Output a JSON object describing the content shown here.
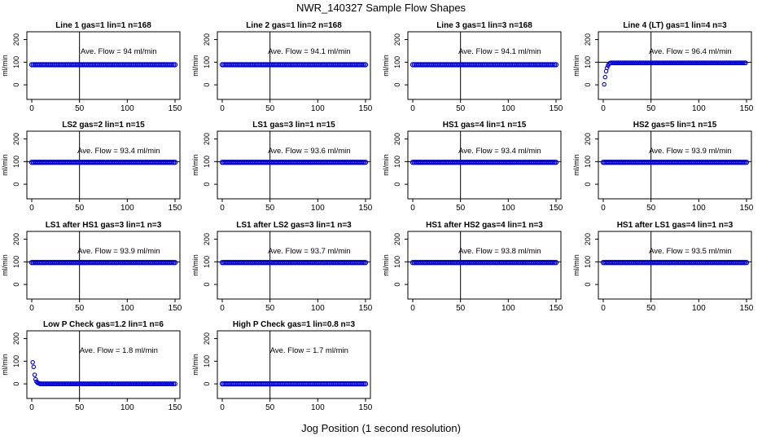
{
  "figure": {
    "title": "NWR_140327  Sample Flow Shapes",
    "xlabel": "Jog Position (1 second resolution)",
    "ylabel": "ml/min",
    "xticks": [
      "0",
      "50",
      "100",
      "150"
    ],
    "yticks": [
      "0",
      "100",
      "200"
    ],
    "point_color": "#0000dd"
  },
  "chart_data": [
    {
      "type": "scatter",
      "title": "Line 1 gas=1 lin=1 n=168",
      "annotation": "Ave. Flow = 94  ml/min",
      "xlim": [
        0,
        150
      ],
      "ylim": [
        -50,
        220
      ],
      "vline": 50,
      "hline": null,
      "shape": "flat",
      "level": 89,
      "x": [
        0,
        150
      ],
      "y": [
        89,
        89
      ]
    },
    {
      "type": "scatter",
      "title": "Line 2 gas=1 lin=2 n=168",
      "annotation": "Ave. Flow = 94.1  ml/min",
      "xlim": [
        0,
        150
      ],
      "ylim": [
        -50,
        220
      ],
      "vline": 50,
      "hline": null,
      "shape": "flat",
      "level": 89,
      "x": [
        0,
        150
      ],
      "y": [
        89,
        89
      ]
    },
    {
      "type": "scatter",
      "title": "Line 3 gas=1 lin=3 n=168",
      "annotation": "Ave. Flow = 94.1  ml/min",
      "xlim": [
        0,
        150
      ],
      "ylim": [
        -50,
        220
      ],
      "vline": 50,
      "hline": null,
      "shape": "flat",
      "level": 89,
      "x": [
        0,
        150
      ],
      "y": [
        89,
        89
      ]
    },
    {
      "type": "scatter",
      "title": "Line 4 (LT) gas=1 lin=4 n=3",
      "annotation": "Ave. Flow = 96.4  ml/min",
      "xlim": [
        0,
        150
      ],
      "ylim": [
        -50,
        220
      ],
      "vline": 50,
      "hline": 100,
      "shape": "rise",
      "level": 97,
      "x": [
        1,
        2,
        3,
        4,
        5,
        6,
        7,
        150
      ],
      "y": [
        2,
        34,
        60,
        75,
        85,
        92,
        96,
        97
      ]
    },
    {
      "type": "scatter",
      "title": "LS2 gas=2 lin=1 n=15",
      "annotation": "Ave. Flow = 93.4  ml/min",
      "xlim": [
        0,
        150
      ],
      "ylim": [
        -50,
        220
      ],
      "vline": 50,
      "hline": 100,
      "shape": "flat",
      "level": 97,
      "x": [
        0,
        150
      ],
      "y": [
        97,
        97
      ]
    },
    {
      "type": "scatter",
      "title": "LS1 gas=3 lin=1 n=15",
      "annotation": "Ave. Flow = 93.6  ml/min",
      "xlim": [
        0,
        150
      ],
      "ylim": [
        -50,
        220
      ],
      "vline": 50,
      "hline": 100,
      "shape": "flat",
      "level": 97,
      "x": [
        0,
        150
      ],
      "y": [
        97,
        97
      ]
    },
    {
      "type": "scatter",
      "title": "HS1 gas=4 lin=1 n=15",
      "annotation": "Ave. Flow = 93.4  ml/min",
      "xlim": [
        0,
        150
      ],
      "ylim": [
        -50,
        220
      ],
      "vline": 50,
      "hline": 100,
      "shape": "flat",
      "level": 97,
      "x": [
        0,
        150
      ],
      "y": [
        97,
        97
      ]
    },
    {
      "type": "scatter",
      "title": "HS2 gas=5 lin=1 n=15",
      "annotation": "Ave. Flow = 93.9  ml/min",
      "xlim": [
        0,
        150
      ],
      "ylim": [
        -50,
        220
      ],
      "vline": 50,
      "hline": 100,
      "shape": "flat",
      "level": 97,
      "x": [
        0,
        150
      ],
      "y": [
        97,
        97
      ]
    },
    {
      "type": "scatter",
      "title": "LS1 after HS1 gas=3 lin=1 n=3",
      "annotation": "Ave. Flow = 93.9  ml/min",
      "xlim": [
        0,
        150
      ],
      "ylim": [
        -50,
        220
      ],
      "vline": 50,
      "hline": 100,
      "shape": "flat",
      "level": 97,
      "x": [
        0,
        150
      ],
      "y": [
        97,
        97
      ]
    },
    {
      "type": "scatter",
      "title": "LS1 after LS2 gas=3 lin=1 n=3",
      "annotation": "Ave. Flow = 93.7  ml/min",
      "xlim": [
        0,
        150
      ],
      "ylim": [
        -50,
        220
      ],
      "vline": 50,
      "hline": 100,
      "shape": "flat",
      "level": 97,
      "x": [
        0,
        150
      ],
      "y": [
        97,
        97
      ]
    },
    {
      "type": "scatter",
      "title": "HS1 after HS2 gas=4 lin=1 n=3",
      "annotation": "Ave. Flow = 93.8  ml/min",
      "xlim": [
        0,
        150
      ],
      "ylim": [
        -50,
        220
      ],
      "vline": 50,
      "hline": 100,
      "shape": "flat",
      "level": 97,
      "x": [
        0,
        150
      ],
      "y": [
        97,
        97
      ]
    },
    {
      "type": "scatter",
      "title": "HS1 after LS1 gas=4 lin=1 n=3",
      "annotation": "Ave. Flow = 93.5  ml/min",
      "xlim": [
        0,
        150
      ],
      "ylim": [
        -50,
        220
      ],
      "vline": 50,
      "hline": 100,
      "shape": "flat",
      "level": 97,
      "x": [
        0,
        150
      ],
      "y": [
        97,
        97
      ]
    },
    {
      "type": "scatter",
      "title": "Low P Check gas=1.2 lin=1 n=6",
      "annotation": "Ave. Flow = 1.8  ml/min",
      "xlim": [
        0,
        150
      ],
      "ylim": [
        -50,
        220
      ],
      "vline": 50,
      "hline": null,
      "shape": "decay",
      "level": 0,
      "x": [
        1,
        2,
        3,
        4,
        5,
        6,
        7,
        8,
        150
      ],
      "y": [
        95,
        75,
        40,
        20,
        10,
        5,
        3,
        2,
        0
      ]
    },
    {
      "type": "scatter",
      "title": "High P Check gas=1 lin=0.8 n=3",
      "annotation": "Ave. Flow = 1.7  ml/min",
      "xlim": [
        0,
        150
      ],
      "ylim": [
        -50,
        220
      ],
      "vline": 50,
      "hline": null,
      "shape": "flat",
      "level": 0,
      "x": [
        0,
        150
      ],
      "y": [
        0,
        0
      ]
    }
  ]
}
